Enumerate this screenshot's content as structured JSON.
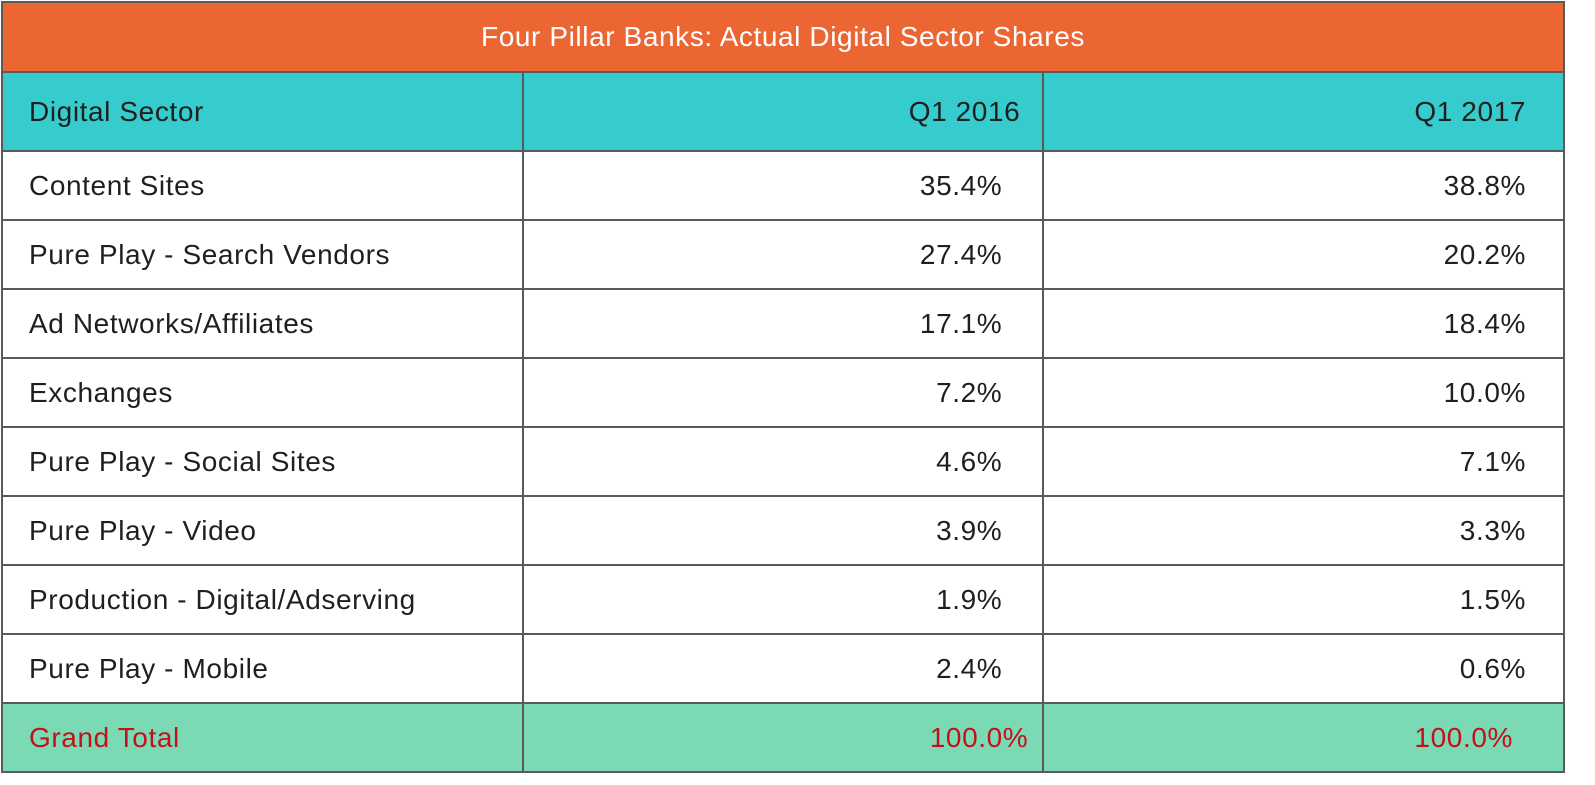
{
  "table": {
    "title": "Four Pillar Banks: Actual Digital Sector Shares",
    "colors": {
      "title_bg": "#ec6634",
      "header_bg": "#36cbcd",
      "total_bg": "#7bdab4",
      "total_text": "#c1111b",
      "border": "#5a5a5a"
    },
    "headers": [
      "Digital Sector",
      "Q1 2016",
      "Q1 2017"
    ],
    "rows": [
      {
        "sector": "Content Sites",
        "q1_2016": "35.4%",
        "q1_2017": "38.8%"
      },
      {
        "sector": "Pure Play - Search Vendors",
        "q1_2016": "27.4%",
        "q1_2017": "20.2%"
      },
      {
        "sector": "Ad Networks/Affiliates",
        "q1_2016": "17.1%",
        "q1_2017": "18.4%"
      },
      {
        "sector": "Exchanges",
        "q1_2016": "7.2%",
        "q1_2017": "10.0%"
      },
      {
        "sector": "Pure Play - Social Sites",
        "q1_2016": "4.6%",
        "q1_2017": "7.1%"
      },
      {
        "sector": "Pure Play - Video",
        "q1_2016": "3.9%",
        "q1_2017": "3.3%"
      },
      {
        "sector": "Production - Digital/Adserving",
        "q1_2016": "1.9%",
        "q1_2017": "1.5%"
      },
      {
        "sector": "Pure Play - Mobile",
        "q1_2016": "2.4%",
        "q1_2017": "0.6%"
      }
    ],
    "total": {
      "label": "Grand Total",
      "q1_2016": "100.0%",
      "q1_2017": "100.0%"
    }
  }
}
